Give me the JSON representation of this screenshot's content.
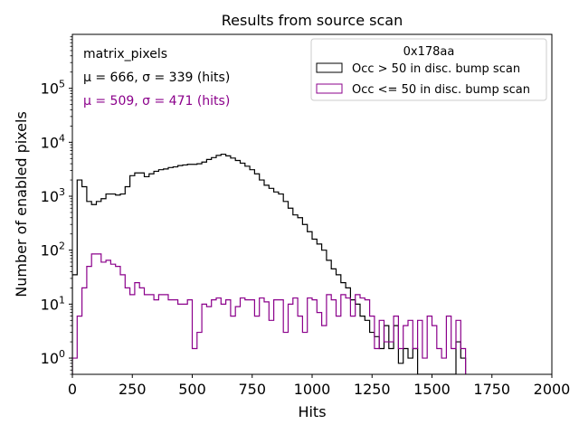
{
  "chart_data": {
    "type": "histogram",
    "title": "Results from source scan",
    "xlabel": "Hits",
    "ylabel": "Number of enabled pixels",
    "xlim": [
      0,
      2000
    ],
    "ylim": [
      0.5,
      1000000
    ],
    "yscale": "log",
    "bin_width": 20,
    "x_ticks": [
      0,
      250,
      500,
      750,
      1000,
      1250,
      1500,
      1750,
      2000
    ],
    "x_tick_labels": [
      "0",
      "250",
      "500",
      "750",
      "1000",
      "1250",
      "1500",
      "1750",
      "2000"
    ],
    "y_ticks": [
      1,
      10,
      100,
      1000,
      10000,
      100000
    ],
    "y_tick_bases": [
      "10",
      "10",
      "10",
      "10",
      "10",
      "10"
    ],
    "y_tick_exponents": [
      "0",
      "1",
      "2",
      "3",
      "4",
      "5"
    ],
    "annotations": {
      "label": "matrix_pixels",
      "stats_black": "μ = 666, σ = 339 (hits)",
      "stats_purple": "μ = 509, σ = 471 (hits)"
    },
    "legend": {
      "title": "0x178aa",
      "location": "top-right",
      "entries": [
        "Occ > 50 in disc. bump scan",
        "Occ <= 50 in disc. bump scan"
      ]
    },
    "series": [
      {
        "name": "Occ > 50 in disc. bump scan",
        "color": "#000000",
        "values": [
          35,
          2000,
          1500,
          800,
          700,
          800,
          900,
          1100,
          1100,
          1050,
          1100,
          1500,
          2400,
          2700,
          2700,
          2300,
          2600,
          2900,
          3100,
          3200,
          3400,
          3500,
          3700,
          3800,
          3900,
          3900,
          4000,
          4300,
          4800,
          5200,
          5700,
          6000,
          5600,
          5100,
          4600,
          4100,
          3600,
          3100,
          2600,
          2000,
          1600,
          1400,
          1200,
          1100,
          800,
          600,
          450,
          400,
          300,
          220,
          160,
          130,
          100,
          65,
          45,
          35,
          25,
          20,
          12,
          10,
          6,
          5,
          3,
          2.5,
          1.5,
          4,
          1.5,
          4,
          0.8,
          1.5,
          1,
          1.5,
          0.5,
          0.5,
          0.5,
          0.5,
          0.5,
          0.5,
          0.5,
          0.5,
          2,
          1
        ]
      },
      {
        "name": "Occ <= 50 in disc. bump scan",
        "color": "#8b008b",
        "values": [
          1,
          6,
          20,
          50,
          85,
          85,
          60,
          65,
          55,
          50,
          35,
          20,
          15,
          25,
          20,
          15,
          15,
          12,
          15,
          15,
          12,
          12,
          10,
          10,
          12,
          1.5,
          3,
          10,
          9,
          12,
          13,
          10,
          12,
          6,
          9,
          13,
          12,
          12,
          6,
          13,
          11,
          5,
          12,
          12,
          3,
          10,
          13,
          6,
          3,
          13,
          12,
          7,
          4,
          15,
          12,
          6,
          15,
          13,
          6,
          15,
          13,
          12,
          6,
          1.5,
          5,
          2,
          2,
          6,
          1.5,
          4,
          5,
          1.5,
          5,
          1,
          6,
          4,
          1.5,
          1,
          6,
          1.5,
          5,
          1.5
        ]
      }
    ]
  }
}
